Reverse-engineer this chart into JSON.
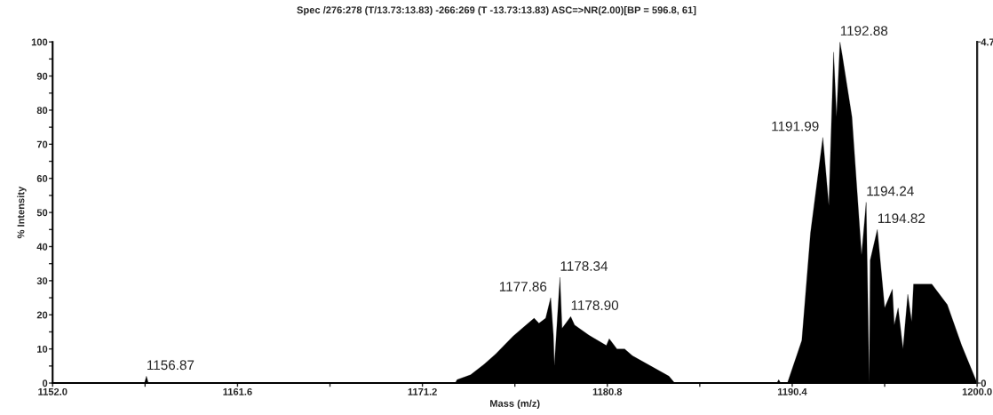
{
  "chart_data": {
    "type": "area",
    "title": "Spec /276:278 (T/13.73:13.83) -266:269 (T -13.73:13.83) ASC=>NR(2.00)[BP = 596.8, 61]",
    "xlabel": "Mass (m/z)",
    "ylabel": "% Intensity",
    "x": [
      1152.0,
      1156.77,
      1156.87,
      1156.97,
      1172.9,
      1173.0,
      1173.7,
      1174.4,
      1175.0,
      1175.9,
      1176.5,
      1177.0,
      1177.25,
      1177.6,
      1177.86,
      1178.0,
      1178.05,
      1178.34,
      1178.45,
      1178.9,
      1179.1,
      1179.85,
      1180.75,
      1180.9,
      1181.3,
      1181.7,
      1182.1,
      1183.05,
      1184.0,
      1184.3,
      1189.6,
      1189.7,
      1189.8,
      1190.15,
      1190.9,
      1191.35,
      1191.99,
      1192.3,
      1192.55,
      1192.7,
      1192.88,
      1193.0,
      1193.5,
      1194.0,
      1194.24,
      1194.4,
      1194.45,
      1194.82,
      1195.2,
      1195.6,
      1195.7,
      1195.9,
      1196.15,
      1196.4,
      1196.6,
      1196.7,
      1197.05,
      1197.65,
      1198.45,
      1199.2,
      1200.0
    ],
    "series": [
      {
        "color": "#000000",
        "values": [
          0,
          0,
          2,
          0,
          0,
          1,
          2.4,
          5.5,
          8.5,
          13.7,
          16.6,
          19,
          17.5,
          19,
          25,
          14,
          5,
          31,
          16,
          19.5,
          17,
          14,
          11,
          13,
          10,
          10,
          8,
          5,
          2,
          0,
          0,
          1,
          0,
          0,
          12.5,
          44,
          72,
          52,
          97,
          78,
          100,
          96,
          78,
          37.5,
          53,
          0,
          36,
          45,
          22,
          27.5,
          17,
          22,
          10,
          26,
          18,
          29,
          29,
          29,
          23,
          11,
          0
        ]
      }
    ],
    "xlim": [
      1152.0,
      1200.0
    ],
    "xticks": [
      {
        "value": 1152.0,
        "label": "1152.0"
      },
      {
        "value": 1156.8,
        "label": null
      },
      {
        "value": 1161.6,
        "label": "1161.6"
      },
      {
        "value": 1166.4,
        "label": null
      },
      {
        "value": 1171.2,
        "label": "1171.2"
      },
      {
        "value": 1176.0,
        "label": null
      },
      {
        "value": 1180.8,
        "label": "1180.8"
      },
      {
        "value": 1185.6,
        "label": null
      },
      {
        "value": 1190.4,
        "label": "1190.4"
      },
      {
        "value": 1195.2,
        "label": null
      },
      {
        "value": 1200.0,
        "label": "1200.0"
      }
    ],
    "ylim": [
      0,
      100
    ],
    "yticks": [
      0,
      {
        "value": 5,
        "label": null
      },
      10,
      {
        "value": 15,
        "label": null
      },
      20,
      {
        "value": 25,
        "label": null
      },
      30,
      {
        "value": 35,
        "label": null
      },
      40,
      {
        "value": 45,
        "label": null
      },
      50,
      {
        "value": 55,
        "label": null
      },
      60,
      {
        "value": 65,
        "label": null
      },
      70,
      {
        "value": 75,
        "label": null
      },
      80,
      {
        "value": 85,
        "label": null
      },
      90,
      {
        "value": 95,
        "label": null
      },
      100
    ],
    "y2lim": [
      0,
      4.7
    ],
    "y2ticks": [
      0,
      4.7
    ],
    "annotations": [
      {
        "text": "1156.87",
        "x": 1156.87,
        "y": 2
      },
      {
        "text": "1178.34",
        "x": 1178.34,
        "y": 31
      },
      {
        "text": "1177.86",
        "x": 1177.86,
        "y": 25
      },
      {
        "text": "1178.90",
        "x": 1178.9,
        "y": 19.5
      },
      {
        "text": "1192.88",
        "x": 1192.88,
        "y": 100
      },
      {
        "text": "1191.99",
        "x": 1191.99,
        "y": 72
      },
      {
        "text": "1194.24",
        "x": 1194.24,
        "y": 53
      },
      {
        "text": "1194.82",
        "x": 1194.82,
        "y": 45
      }
    ],
    "grid": false
  }
}
